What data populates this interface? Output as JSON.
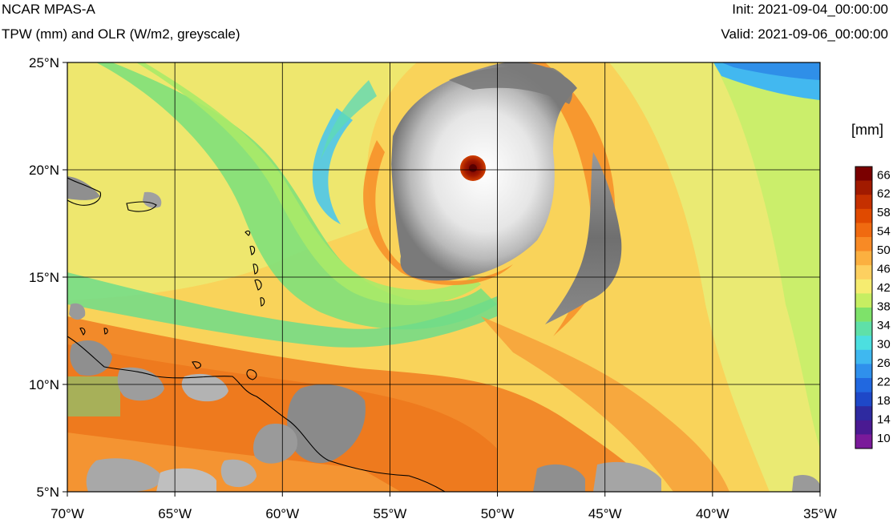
{
  "header": {
    "title": "NCAR MPAS-A",
    "subtitle": "TPW (mm) and OLR (W/m2, greyscale)",
    "init": "Init: 2021-09-04_00:00:00",
    "valid": "Valid: 2021-09-06_00:00:00"
  },
  "chart_data": {
    "type": "heatmap",
    "title": "NCAR MPAS-A",
    "subtitle": "TPW (mm) and OLR (W/m2, greyscale)",
    "x_ticks": [
      "70°W",
      "65°W",
      "60°W",
      "55°W",
      "50°W",
      "45°W",
      "40°W",
      "35°W"
    ],
    "y_ticks": [
      "25°N",
      "20°N",
      "15°N",
      "10°N",
      "5°N"
    ],
    "lon_range": [
      -70,
      -35
    ],
    "lat_range": [
      5,
      25
    ],
    "grid": true,
    "colorbar": {
      "units": "[mm]",
      "labels": [
        "66",
        "62",
        "58",
        "54",
        "50",
        "46",
        "42",
        "38",
        "34",
        "30",
        "26",
        "22",
        "18",
        "14",
        "10"
      ],
      "colors": [
        "#7a0000",
        "#a11a00",
        "#c53000",
        "#e04a00",
        "#f06a10",
        "#f88a25",
        "#fbb040",
        "#fdd060",
        "#f6ec70",
        "#c6ee62",
        "#7ee26a",
        "#5fe0a8",
        "#4cdfe0",
        "#3fb8f0",
        "#2f90ec",
        "#2168e0",
        "#1e48c8",
        "#2e2aa0",
        "#4a1a92",
        "#7a1a9a"
      ]
    },
    "storm_center": {
      "lon": -50.7,
      "lat": 20.0
    }
  }
}
